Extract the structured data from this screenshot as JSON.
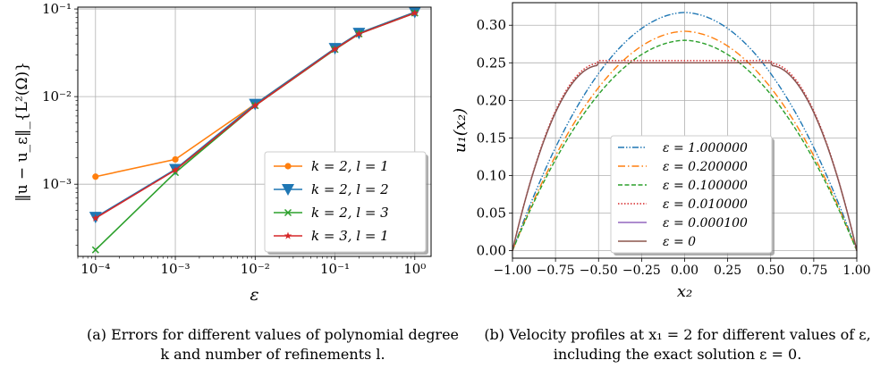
{
  "chart_data": [
    {
      "type": "line",
      "xscale": "log",
      "yscale": "log",
      "xlabel": "ε",
      "ylabel": "‖u − u_ε‖_{L²(Ω)}",
      "xlim": [
        6e-05,
        1.6
      ],
      "ylim": [
        0.00015,
        0.105
      ],
      "xticks": [
        0.0001,
        0.001,
        0.01,
        0.1,
        1
      ],
      "xtick_labels": [
        "10⁻⁴",
        "10⁻³",
        "10⁻²",
        "10⁻¹",
        "10⁰"
      ],
      "yticks": [
        0.001,
        0.01,
        0.1
      ],
      "ytick_labels": [
        "10⁻³",
        "10⁻²",
        "10⁻¹"
      ],
      "grid": true,
      "legend_position": "bottom-right",
      "x": [
        0.0001,
        0.001,
        0.01,
        0.1,
        0.2,
        1
      ],
      "series": [
        {
          "name": "k = 2, l = 1",
          "color": "#ff7f0e",
          "marker": "circle",
          "values": [
            0.00122,
            0.00192,
            0.0082,
            0.0355,
            0.053,
            0.092
          ]
        },
        {
          "name": "k = 2, l = 2",
          "color": "#1f77b4",
          "marker": "triangle-down",
          "values": [
            0.00042,
            0.00148,
            0.0082,
            0.0355,
            0.053,
            0.092
          ]
        },
        {
          "name": "k = 2, l = 3",
          "color": "#2ca02c",
          "marker": "x",
          "values": [
            0.000178,
            0.00136,
            0.0079,
            0.0345,
            0.052,
            0.09
          ]
        },
        {
          "name": "k = 3, l = 1",
          "color": "#d62728",
          "marker": "star",
          "values": [
            0.00041,
            0.00145,
            0.0079,
            0.0348,
            0.052,
            0.09
          ]
        }
      ]
    },
    {
      "type": "line",
      "xlabel": "x₂",
      "ylabel": "u₁(x₂)",
      "xlim": [
        -1,
        1
      ],
      "ylim": [
        -0.01,
        0.33
      ],
      "xticks": [
        -1,
        -0.75,
        -0.5,
        -0.25,
        0,
        0.25,
        0.5,
        0.75,
        1
      ],
      "xtick_labels": [
        "−1.00",
        "−0.75",
        "−0.50",
        "−0.25",
        "0.00",
        "0.25",
        "0.50",
        "0.75",
        "1.00"
      ],
      "yticks": [
        0,
        0.05,
        0.1,
        0.15,
        0.2,
        0.25,
        0.3
      ],
      "ytick_labels": [
        "0.00",
        "0.05",
        "0.10",
        "0.15",
        "0.20",
        "0.25",
        "0.30"
      ],
      "grid": true,
      "legend_position": "center",
      "series": [
        {
          "name": "ε = 1.000000",
          "color": "#1f77b4",
          "dash": "dashdotdot",
          "profile": "parabola",
          "peak": 0.309
        },
        {
          "name": "ε = 0.200000",
          "color": "#ff7f0e",
          "dash": "dashdot",
          "profile": "parabola",
          "peak": 0.284
        },
        {
          "name": "ε = 0.100000",
          "color": "#2ca02c",
          "dash": "dashed",
          "profile": "parabola",
          "peak": 0.272
        },
        {
          "name": "ε = 0.010000",
          "color": "#d62728",
          "dash": "dotted",
          "profile": "plateau",
          "peak": 0.253
        },
        {
          "name": "ε = 0.000100",
          "color": "#9467bd",
          "dash": "solid",
          "profile": "plateau",
          "peak": 0.25
        },
        {
          "name": "ε = 0",
          "color": "#8c564b",
          "dash": "solid",
          "profile": "plateau",
          "peak": 0.25
        }
      ]
    }
  ],
  "captions": {
    "a": "(a) Errors for different values of polynomial degree k and number of refinements l.",
    "b": "(b) Velocity profiles at x₁ = 2 for different values of ε, including the exact solution ε = 0."
  }
}
